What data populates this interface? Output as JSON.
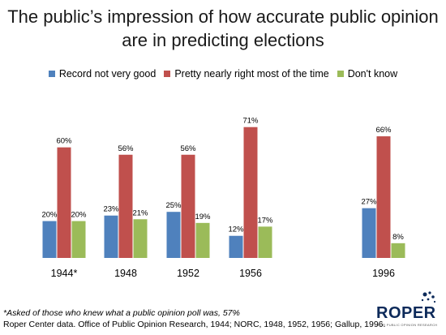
{
  "title_line1": "The public’s impression of how accurate public opinion",
  "title_line2": "are in predicting elections",
  "footnote": "*Asked of those who knew what a public opinion poll was, 57%",
  "source": "Roper Center data. Office of Public Opinion Research, 1944; NORC, 1948, 1952, 1956;  Gallup, 1996.",
  "logo": {
    "text": "ROPER",
    "sub": "FOR PUBLIC OPINION RESEARCH"
  },
  "colors": {
    "record": "#4f81bd",
    "right": "#c0504d",
    "dontknow": "#9bbb59"
  },
  "chart_data": {
    "type": "bar",
    "title": "The public’s impression of how accurate public opinion are in predicting elections",
    "categories": [
      "1944*",
      "1948",
      "1952",
      "1956",
      "1996"
    ],
    "series": [
      {
        "name": "Record not very good",
        "values": [
          20,
          23,
          25,
          12,
          27
        ],
        "color": "#4f81bd"
      },
      {
        "name": "Pretty nearly right most of the time",
        "values": [
          60,
          56,
          56,
          71,
          66
        ],
        "color": "#c0504d"
      },
      {
        "name": "Don't know",
        "values": [
          20,
          21,
          19,
          17,
          8
        ],
        "color": "#9bbb59"
      }
    ],
    "value_suffix": "%",
    "ylim": [
      0,
      80
    ],
    "grid": false,
    "legend": "top"
  }
}
